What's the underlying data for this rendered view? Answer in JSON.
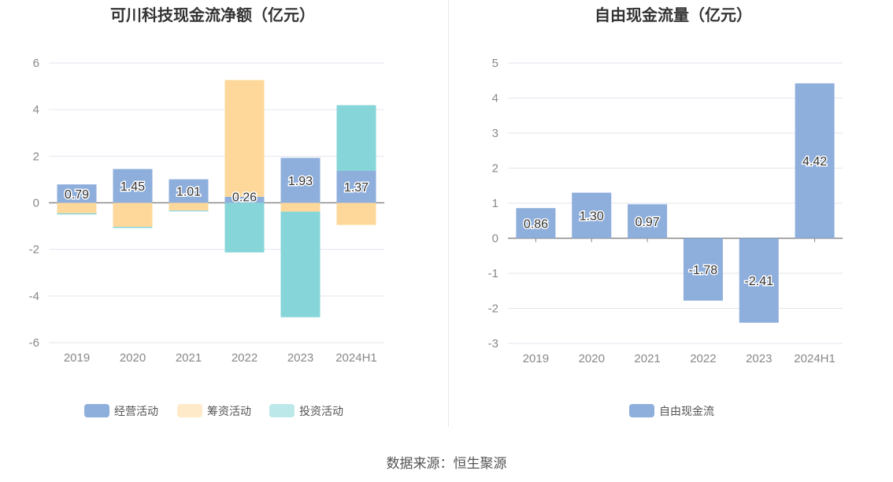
{
  "chart_data": [
    {
      "type": "bar",
      "stacked": true,
      "title": "可川科技现金流净额（亿元）",
      "categories": [
        "2019",
        "2020",
        "2021",
        "2022",
        "2023",
        "2024H1"
      ],
      "ylim": [
        -6,
        6
      ],
      "yticks": [
        6,
        4,
        2,
        0,
        -2,
        -4,
        -6
      ],
      "legend_position": "bottom",
      "series": [
        {
          "name": "经营活动",
          "color": "#8eaedc",
          "values": [
            0.79,
            1.45,
            1.01,
            0.26,
            1.93,
            1.37
          ],
          "labels": [
            "0.79",
            "1.45",
            "1.01",
            "0.26",
            "1.93",
            "1.37"
          ]
        },
        {
          "name": "筹资活动",
          "color": "#fdd89a",
          "values": [
            -0.45,
            -1.03,
            -0.33,
            5.01,
            -0.38,
            -0.95
          ]
        },
        {
          "name": "投资活动",
          "color": "#86d5d8",
          "values": [
            -0.05,
            -0.05,
            -0.04,
            -2.13,
            -4.53,
            2.82
          ]
        }
      ]
    },
    {
      "type": "bar",
      "title": "自由现金流量（亿元）",
      "categories": [
        "2019",
        "2020",
        "2021",
        "2022",
        "2023",
        "2024H1"
      ],
      "ylim": [
        -3,
        5
      ],
      "yticks": [
        5,
        4,
        3,
        2,
        1,
        0,
        -1,
        -2,
        -3
      ],
      "legend_position": "bottom",
      "series": [
        {
          "name": "自由现金流",
          "color": "#8eaedc",
          "values": [
            0.86,
            1.3,
            0.97,
            -1.78,
            -2.41,
            4.42
          ],
          "labels": [
            "0.86",
            "1.30",
            "0.97",
            "-1.78",
            "-2.41",
            "4.42"
          ]
        }
      ]
    }
  ],
  "source": "数据来源：恒生聚源"
}
